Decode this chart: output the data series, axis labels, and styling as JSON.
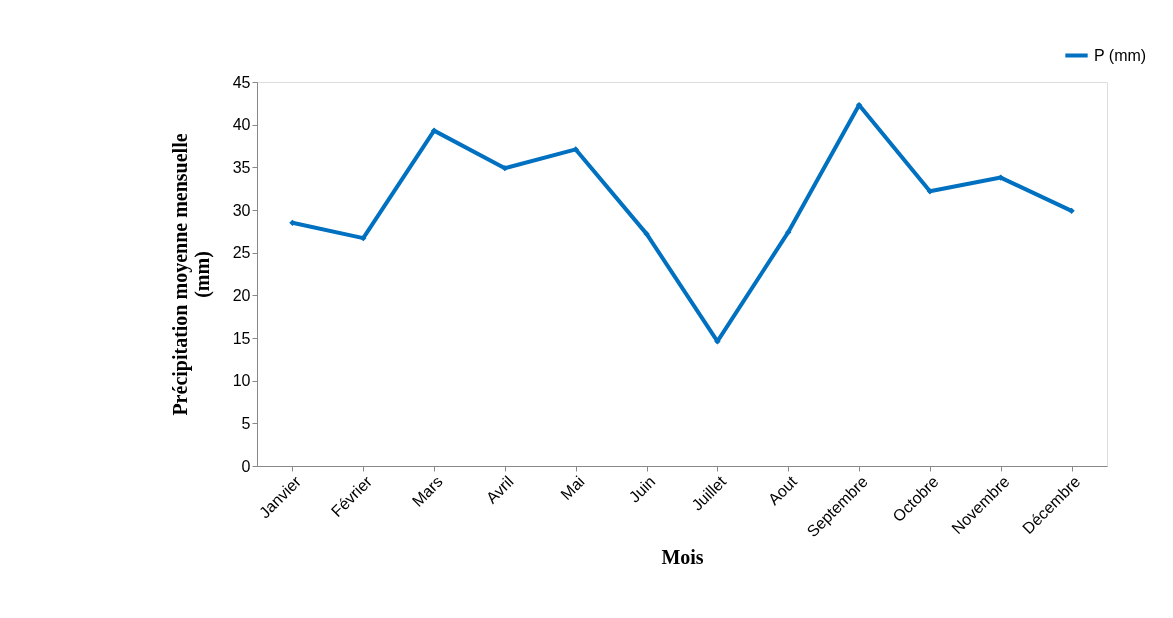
{
  "chart_data": {
    "type": "line",
    "xlabel": "Mois",
    "ylabel": "Précipitation moyenne mensuelle (mm)",
    "categories": [
      "Janvier",
      "Février",
      "Mars",
      "Avril",
      "Mai",
      "Juin",
      "Juillet",
      "Aout",
      "Septembre",
      "Octobre",
      "Novembre",
      "Décembre"
    ],
    "series": [
      {
        "name": "P (mm)",
        "color": "#0070c0",
        "values": [
          28.5,
          26.7,
          39.3,
          34.9,
          37.1,
          27.2,
          14.6,
          27.4,
          42.3,
          32.2,
          33.8,
          29.9
        ]
      }
    ],
    "ylim": [
      0,
      45
    ],
    "yticks": [
      0,
      5,
      10,
      15,
      20,
      25,
      30,
      35,
      40,
      45
    ],
    "grid": false,
    "legend": "top right",
    "marker": "diamond",
    "line_style": "solid"
  }
}
